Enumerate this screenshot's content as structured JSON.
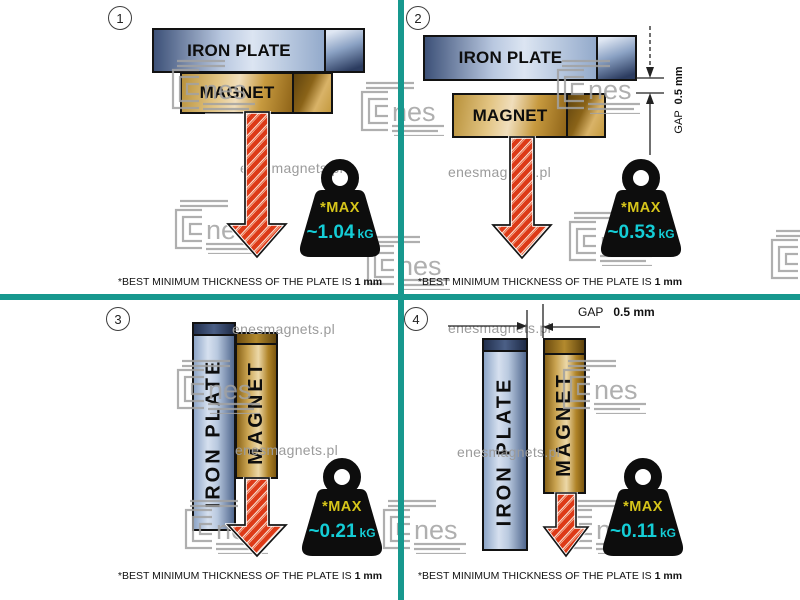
{
  "quadrants": [
    {
      "number": "1",
      "plate_label": "IRON PLATE",
      "magnet_label": "MAGNET",
      "weight": {
        "max_label": "*MAX",
        "value": "~1.04",
        "unit": "kG"
      },
      "caption": {
        "text": "*BEST MINIMUM THICKNESS OF THE PLATE IS",
        "bold": "1 mm"
      }
    },
    {
      "number": "2",
      "plate_label": "IRON PLATE",
      "magnet_label": "MAGNET",
      "gap": {
        "label": "GAP",
        "value": "0.5 mm"
      },
      "weight": {
        "max_label": "*MAX",
        "value": "~0.53",
        "unit": "kG"
      },
      "caption": {
        "text": "*BEST MINIMUM THICKNESS OF THE PLATE IS",
        "bold": "1 mm"
      }
    },
    {
      "number": "3",
      "plate_label": "IRON PLATE",
      "magnet_label": "MAGNET",
      "weight": {
        "max_label": "*MAX",
        "value": "~0.21",
        "unit": "kG"
      },
      "caption": {
        "text": "*BEST MINIMUM THICKNESS OF THE PLATE IS",
        "bold": "1 mm"
      }
    },
    {
      "number": "4",
      "plate_label": "IRON PLATE",
      "magnet_label": "MAGNET",
      "gap": {
        "label": "GAP",
        "value": "0.5 mm"
      },
      "weight": {
        "max_label": "*MAX",
        "value": "~0.11",
        "unit": "kG"
      },
      "caption": {
        "text": "*BEST MINIMUM THICKNESS OF THE PLATE IS",
        "bold": "1 mm"
      }
    }
  ],
  "watermark": {
    "site_text": "enesmagnets.pl",
    "logo_text": "nes"
  },
  "colors": {
    "teal_divider": "#17988e",
    "max_yellow": "#d6c51a",
    "value_cyan": "#14cdd6",
    "arrow_red": "#dd3a17",
    "iron_plate_blue": "#93aacb",
    "magnet_gold": "#c79a3f"
  }
}
